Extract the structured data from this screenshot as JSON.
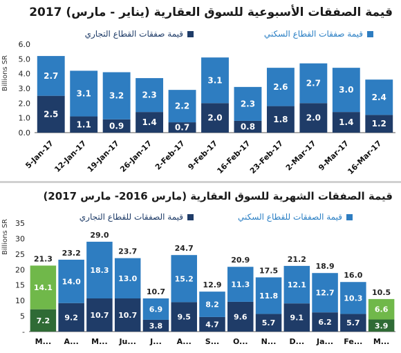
{
  "charts": {
    "top": {
      "title": "قيمة الصفقات الأسبوعية للسوق العقارية (يناير - مارس) 2017",
      "ylabel": "Billions SR",
      "legend": {
        "commercial": "قيمة صفقات القطاع التجاري",
        "residential": "قيمة صفقات القطاع السكني"
      }
    },
    "bottom": {
      "title": "قيمة الصفقات الشهرية للسوق العقارية (مارس 2016- مارس 2017)",
      "ylabel": "Billions SR",
      "legend": {
        "commercial": "قيمة الصفقات للقطاع التجاري",
        "residential": "قيمة الصفقات للقطاع السكني"
      }
    }
  },
  "colors": {
    "residential": "#2e7dc1",
    "commercial": "#1f3c68",
    "highlight_residential": "#70b84a",
    "highlight_commercial": "#2f6b35"
  },
  "chart_data": [
    {
      "type": "bar",
      "stacked": true,
      "title": "قيمة الصفقات الأسبوعية للسوق العقارية (يناير - مارس) 2017",
      "ylabel": "Billions SR",
      "ylim": [
        0,
        6
      ],
      "yticks": [
        "0.0",
        "1.0",
        "2.0",
        "3.0",
        "4.0",
        "5.0",
        "6.0"
      ],
      "categories": [
        "5-Jan-17",
        "12-Jan-17",
        "19-Jan-17",
        "26-Jan-17",
        "2-Feb-17",
        "9-Feb-17",
        "16-Feb-17",
        "23-Feb-17",
        "2-Mar-17",
        "9-Mar-17",
        "16-Mar-17"
      ],
      "series": [
        {
          "name": "قيمة صفقات القطاع التجاري",
          "values": [
            2.5,
            1.1,
            0.9,
            1.4,
            0.7,
            2.0,
            0.8,
            1.8,
            2.0,
            1.4,
            1.2
          ]
        },
        {
          "name": "قيمة صفقات القطاع السكني",
          "values": [
            2.7,
            3.1,
            3.2,
            2.3,
            2.2,
            3.1,
            2.3,
            2.6,
            2.7,
            3.0,
            2.4
          ]
        }
      ],
      "labels_commercial": [
        "2.5",
        "1.1",
        "0.9",
        "1.4",
        "0.7",
        "2.0",
        "0.8",
        "1.8",
        "2.0",
        "1.4",
        "1.2"
      ],
      "labels_residential": [
        "2.7",
        "3.1",
        "3.2",
        "2.3",
        "2.2",
        "3.1",
        "2.3",
        "2.6",
        "2.7",
        "3.0",
        "2.4"
      ],
      "grid": false
    },
    {
      "type": "bar",
      "stacked": true,
      "title": "قيمة الصفقات الشهرية للسوق العقارية (مارس 2016- مارس 2017)",
      "ylabel": "Billions SR",
      "ylim": [
        0,
        35
      ],
      "yticks": [
        "-",
        "5",
        "10",
        "15",
        "20",
        "25",
        "30",
        "35"
      ],
      "categories": [
        "M...",
        "A...",
        "M...",
        "Ju...",
        "J...",
        "A...",
        "S...",
        "O...",
        "N...",
        "D...",
        "Ja...",
        "Fe...",
        "M..."
      ],
      "highlight": [
        0,
        12
      ],
      "series": [
        {
          "name": "قيمة الصفقات للقطاع التجاري",
          "values": [
            7.2,
            9.2,
            10.7,
            10.7,
            3.8,
            9.5,
            4.7,
            9.6,
            5.7,
            9.1,
            6.2,
            5.7,
            3.9
          ]
        },
        {
          "name": "قيمة الصفقات للقطاع السكني",
          "values": [
            14.1,
            14.0,
            18.3,
            13.0,
            6.9,
            15.2,
            8.2,
            11.3,
            11.8,
            12.1,
            12.7,
            10.3,
            6.6
          ]
        }
      ],
      "labels_commercial": [
        "7.2",
        "9.2",
        "10.7",
        "10.7",
        "3.8",
        "9.5",
        "4.7",
        "9.6",
        "5.7",
        "9.1",
        "6.2",
        "5.7",
        "3.9"
      ],
      "labels_residential": [
        "14.1",
        "14.0",
        "18.3",
        "13.0",
        "6.9",
        "15.2",
        "8.2",
        "11.3",
        "11.8",
        "12.1",
        "12.7",
        "10.3",
        "6.6"
      ],
      "totals": [
        "21.3",
        "23.2",
        "29.0",
        "23.7",
        "10.7",
        "24.7",
        "12.9",
        "20.9",
        "17.5",
        "21.2",
        "18.9",
        "16.0",
        "10.5"
      ],
      "grid": false
    }
  ]
}
